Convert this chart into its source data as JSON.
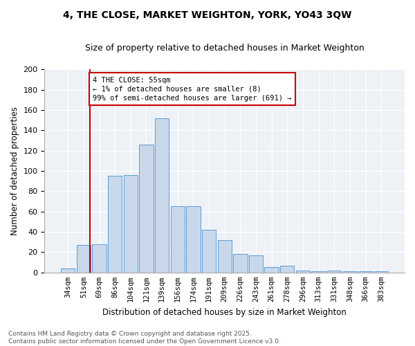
{
  "title": "4, THE CLOSE, MARKET WEIGHTON, YORK, YO43 3QW",
  "subtitle": "Size of property relative to detached houses in Market Weighton",
  "xlabel": "Distribution of detached houses by size in Market Weighton",
  "ylabel": "Number of detached properties",
  "categories": [
    "34sqm",
    "51sqm",
    "69sqm",
    "86sqm",
    "104sqm",
    "121sqm",
    "139sqm",
    "156sqm",
    "174sqm",
    "191sqm",
    "209sqm",
    "226sqm",
    "243sqm",
    "261sqm",
    "278sqm",
    "296sqm",
    "313sqm",
    "331sqm",
    "348sqm",
    "366sqm",
    "383sqm"
  ],
  "values": [
    4,
    27,
    28,
    95,
    96,
    126,
    152,
    65,
    65,
    42,
    32,
    18,
    17,
    5,
    7,
    2,
    1,
    2,
    1,
    1,
    1
  ],
  "bar_color": "#c8d8ea",
  "bar_edge_color": "#5b9bd5",
  "vline_color": "#cc0000",
  "vline_x": 1.42,
  "annotation_text": "4 THE CLOSE: 55sqm\n← 1% of detached houses are smaller (8)\n99% of semi-detached houses are larger (691) →",
  "annotation_box_color": "#cc0000",
  "ylim": [
    0,
    200
  ],
  "yticks": [
    0,
    20,
    40,
    60,
    80,
    100,
    120,
    140,
    160,
    180,
    200
  ],
  "background_color": "#eef2f7",
  "footer_text": "Contains HM Land Registry data © Crown copyright and database right 2025.\nContains public sector information licensed under the Open Government Licence v3.0.",
  "title_fontsize": 10,
  "subtitle_fontsize": 9,
  "xlabel_fontsize": 8.5,
  "ylabel_fontsize": 8.5,
  "tick_fontsize": 8,
  "xtick_fontsize": 7.5,
  "footer_fontsize": 6.5
}
